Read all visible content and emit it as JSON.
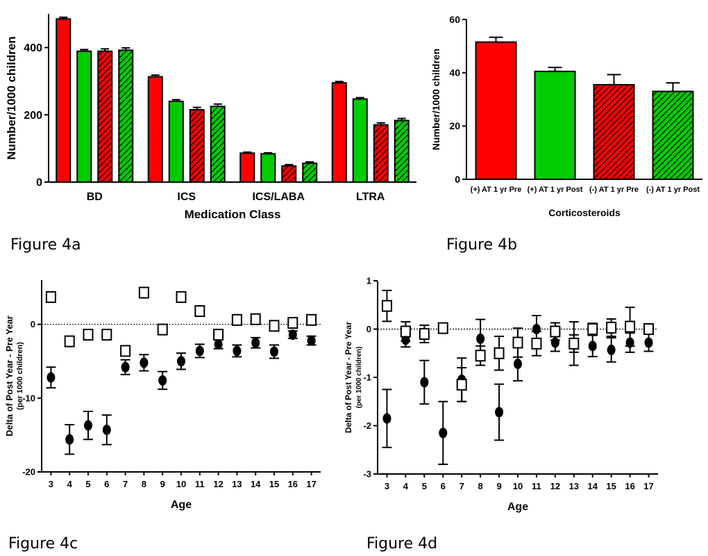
{
  "figure_labels": [
    "Figure 4a",
    "Figure 4b",
    "Figure 4c",
    "Figure 4d"
  ],
  "colors": {
    "pre": "#ff0000",
    "post": "#00cc00",
    "outline": "#000000"
  },
  "chart_data": [
    {
      "type": "bar",
      "xlabel": "Medication Class",
      "ylabel": "Number/1000 children",
      "ylim": [
        0,
        500
      ],
      "yticks": [
        0,
        200,
        400
      ],
      "categories": [
        "BD",
        "ICS",
        "ICS/LABA",
        "LTRA"
      ],
      "series": [
        {
          "style": "solid-red",
          "values": [
            485,
            313,
            86,
            295
          ],
          "errors": [
            5,
            5,
            3,
            4
          ]
        },
        {
          "style": "solid-green",
          "values": [
            389,
            240,
            84,
            247
          ],
          "errors": [
            5,
            5,
            3,
            4
          ]
        },
        {
          "style": "hatch-red",
          "values": [
            389,
            215,
            48,
            170
          ],
          "errors": [
            7,
            7,
            4,
            6
          ]
        },
        {
          "style": "hatch-green",
          "values": [
            392,
            225,
            56,
            183
          ],
          "errors": [
            7,
            7,
            4,
            6
          ]
        }
      ]
    },
    {
      "type": "bar",
      "xlabel": "Corticosteroids",
      "ylabel": "Number/1000 children",
      "ylim": [
        0,
        60
      ],
      "yticks": [
        0,
        20,
        40,
        60
      ],
      "categories": [
        "(+) AT 1 yr Pre",
        "(+) AT 1 yr Post",
        "(-) AT 1 yr Pre",
        "(-) AT 1 yr Post"
      ],
      "series": [
        {
          "styles": [
            "solid-red",
            "solid-green",
            "hatch-red",
            "hatch-green"
          ],
          "values": [
            51.5,
            40.5,
            35.5,
            33
          ],
          "errors": [
            1.8,
            1.5,
            3.8,
            3.2
          ]
        }
      ]
    },
    {
      "type": "scatter",
      "xlabel": "Age",
      "ylabel": "Delta of Post Year - Pre Year",
      "ylabel2": "(per 1000 children)",
      "xlim": [
        2.5,
        17.5
      ],
      "ylim": [
        -20,
        6
      ],
      "yticks": [
        -20,
        -10,
        0
      ],
      "x": [
        3,
        4,
        5,
        6,
        7,
        8,
        9,
        10,
        11,
        12,
        13,
        14,
        15,
        16,
        17
      ],
      "series": [
        {
          "marker": "filled-circle",
          "values": [
            -7.2,
            -15.6,
            -13.7,
            -14.3,
            -5.8,
            -5.2,
            -7.6,
            -5.0,
            -3.6,
            -2.7,
            -3.6,
            -2.5,
            -3.7,
            -1.4,
            -2.2
          ],
          "errors": [
            1.4,
            2.0,
            1.9,
            2.0,
            1.0,
            1.1,
            1.2,
            1.1,
            0.9,
            0.6,
            0.8,
            0.7,
            0.9,
            0.5,
            0.6
          ]
        },
        {
          "marker": "open-square",
          "values": [
            3.7,
            -2.3,
            -1.4,
            -1.4,
            -3.6,
            4.3,
            -0.7,
            3.7,
            1.8,
            -1.4,
            0.6,
            0.7,
            -0.2,
            0.2,
            0.6
          ],
          "errors": [
            0,
            0,
            0,
            0,
            0,
            0,
            0,
            0,
            0,
            0,
            0,
            0,
            0,
            0,
            0
          ]
        }
      ]
    },
    {
      "type": "scatter",
      "xlabel": "Age",
      "ylabel": "Delta of Post Year - Pre Year",
      "ylabel2": "(per 1000 children)",
      "xlim": [
        2.5,
        17.5
      ],
      "ylim": [
        -3,
        1
      ],
      "yticks": [
        -3,
        -2,
        -1,
        0,
        1
      ],
      "x": [
        3,
        4,
        5,
        6,
        7,
        8,
        9,
        10,
        11,
        12,
        13,
        14,
        15,
        16,
        17
      ],
      "series": [
        {
          "marker": "filled-circle",
          "values": [
            -1.85,
            -0.22,
            -1.1,
            -2.15,
            -1.05,
            -0.2,
            -1.72,
            -0.72,
            0.0,
            -0.28,
            -0.3,
            -0.35,
            -0.43,
            -0.28,
            -0.28
          ],
          "errors": [
            0.6,
            0.15,
            0.45,
            0.65,
            0.45,
            0.4,
            0.58,
            0.35,
            0.28,
            0.18,
            0.18,
            0.22,
            0.25,
            0.2,
            0.18
          ]
        },
        {
          "marker": "open-square",
          "values": [
            0.48,
            -0.05,
            -0.1,
            0.02,
            -1.15,
            -0.55,
            -0.5,
            -0.28,
            -0.3,
            -0.05,
            -0.3,
            0.0,
            0.03,
            0.05,
            0.0
          ],
          "errors": [
            0.32,
            0.2,
            0.18,
            0.1,
            0.35,
            0.2,
            0.35,
            0.3,
            0.25,
            0.18,
            0.45,
            0.12,
            0.18,
            0.4,
            0.1
          ]
        }
      ]
    }
  ]
}
